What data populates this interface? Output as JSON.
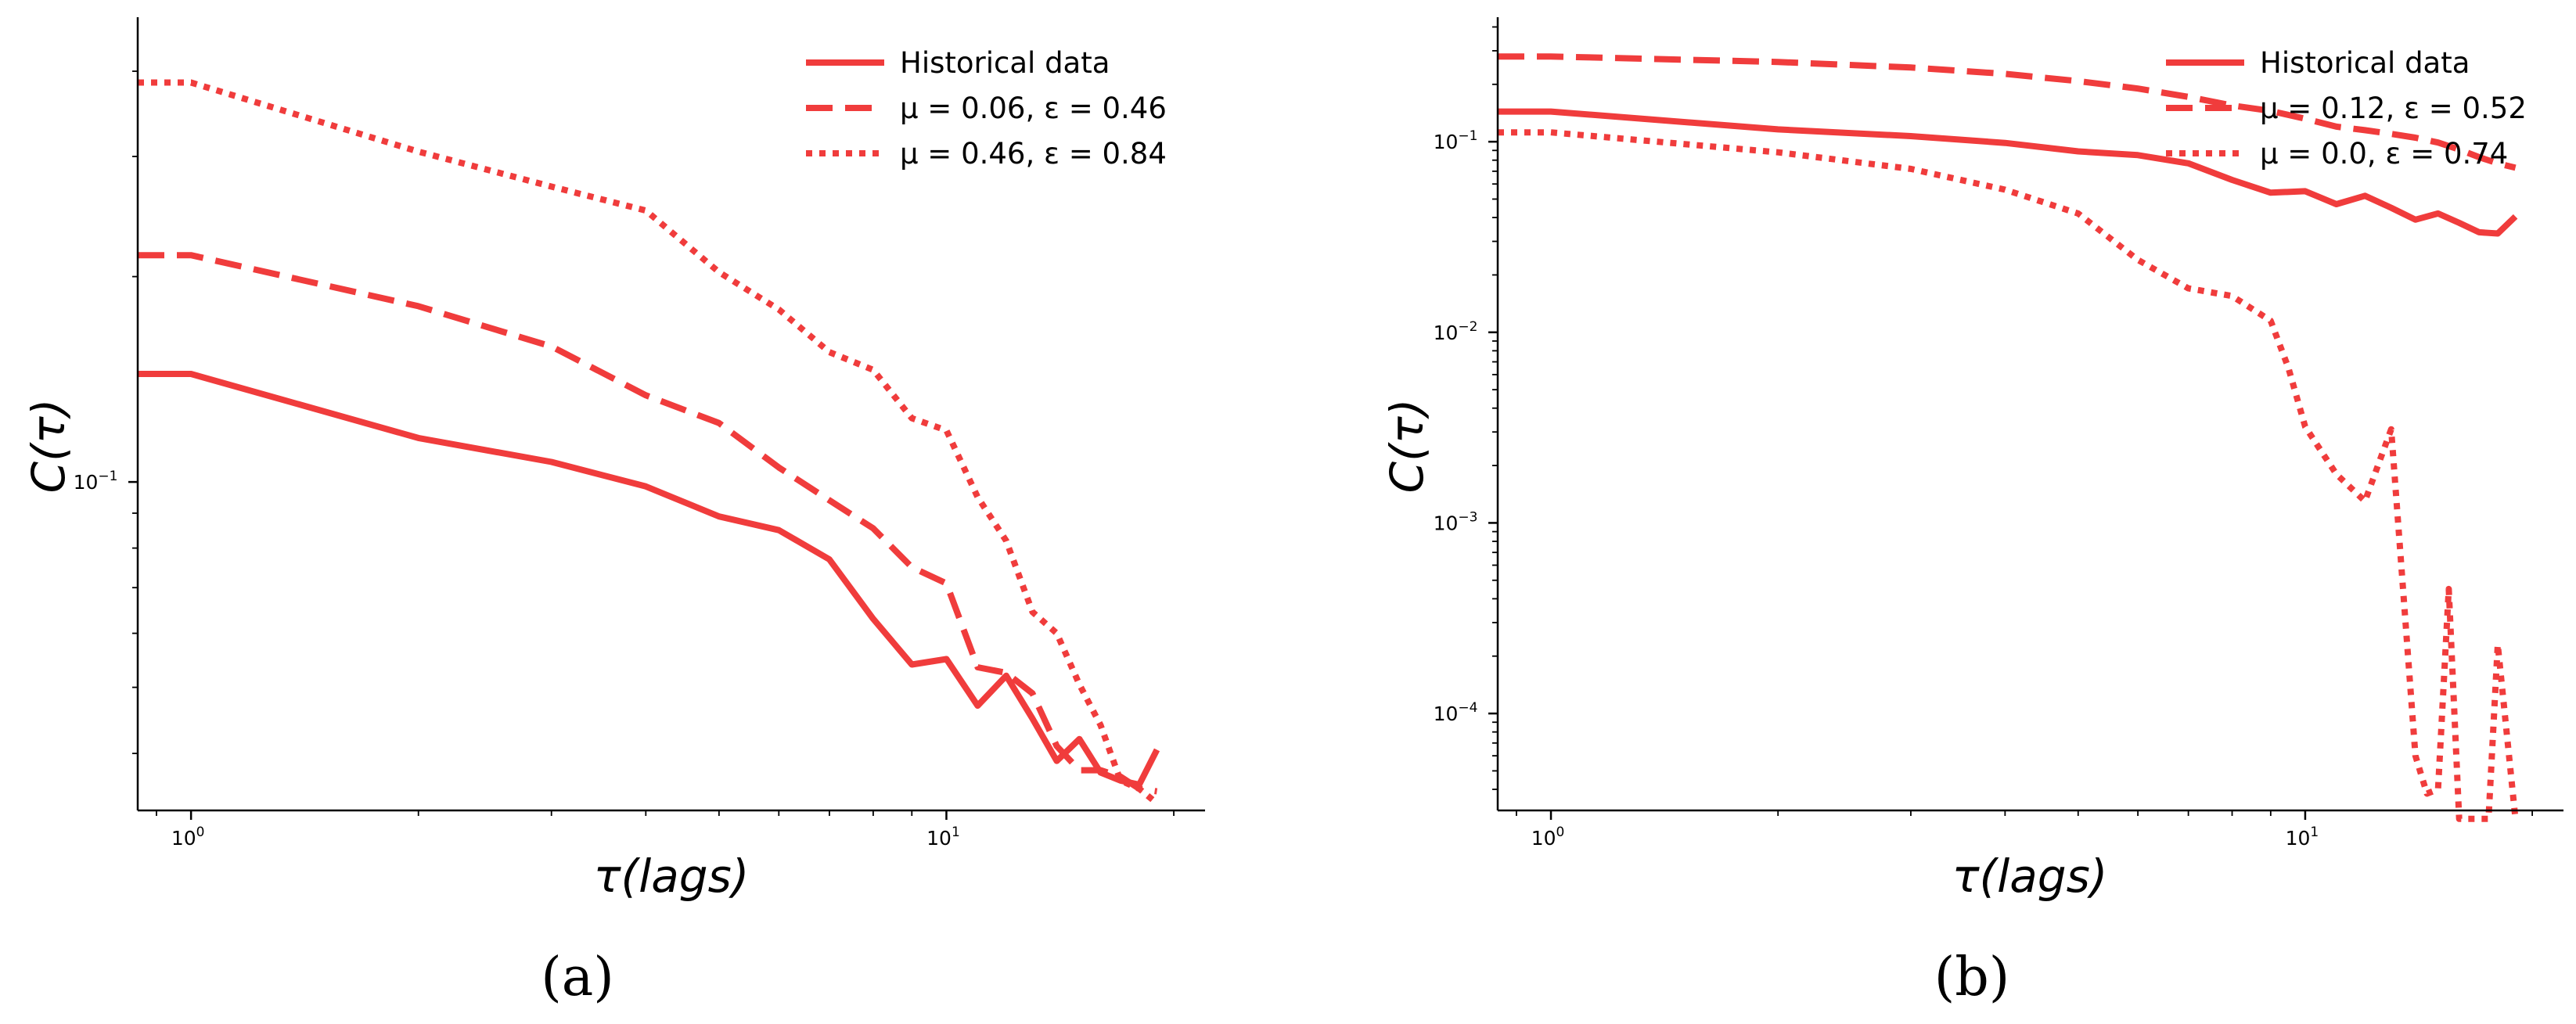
{
  "line_color": "#f03c3c",
  "chart_data": [
    {
      "type": "line",
      "panel_label": "(a)",
      "xscale": "log",
      "yscale": "log",
      "xlabel": "τ(lags)",
      "ylabel": "C(τ)",
      "xlim": [
        0.85,
        22
      ],
      "ylim": [
        0.033,
        0.48
      ],
      "xticks": [
        {
          "value": 1,
          "base": "10",
          "exp": "0"
        },
        {
          "value": 10,
          "base": "10",
          "exp": "1"
        }
      ],
      "yticks": [
        {
          "value": 0.1,
          "base": "10",
          "exp": "−1"
        }
      ],
      "legend_position": "top-right",
      "legend_labels": [
        "Historical data",
        "μ = 0.06, ε = 0.46",
        "μ = 0.46, ε = 0.84"
      ],
      "series": [
        {
          "name": "Historical data",
          "style": "solid",
          "x": [
            0.85,
            1,
            2,
            3,
            4,
            5,
            6,
            7,
            8,
            9,
            10,
            11,
            12,
            13,
            14,
            15,
            16,
            17,
            18,
            19
          ],
          "y": [
            0.144,
            0.144,
            0.116,
            0.107,
            0.0985,
            0.089,
            0.085,
            0.077,
            0.063,
            0.054,
            0.055,
            0.047,
            0.052,
            0.045,
            0.039,
            0.042,
            0.0375,
            0.0365,
            0.036,
            0.0405
          ]
        },
        {
          "name": "μ = 0.06, ε = 0.46",
          "style": "dashed",
          "x": [
            0.85,
            1,
            2,
            3,
            4,
            5,
            6,
            7,
            8,
            9,
            10,
            11,
            12,
            13,
            14,
            15,
            16,
            17,
            18,
            19
          ],
          "y": [
            0.215,
            0.215,
            0.181,
            0.158,
            0.134,
            0.122,
            0.105,
            0.094,
            0.0855,
            0.075,
            0.071,
            0.0535,
            0.0525,
            0.049,
            0.041,
            0.0378,
            0.0378,
            0.037,
            0.0355,
            0.0352
          ]
        },
        {
          "name": "μ = 0.46, ε = 0.84",
          "style": "dotted",
          "x": [
            0.85,
            1,
            2,
            3,
            4,
            5,
            6,
            7,
            8,
            9,
            10,
            11,
            12,
            13,
            14,
            15,
            16,
            17,
            18,
            19
          ],
          "y": [
            0.385,
            0.385,
            0.305,
            0.271,
            0.25,
            0.203,
            0.179,
            0.155,
            0.146,
            0.124,
            0.119,
            0.095,
            0.082,
            0.0645,
            0.06,
            0.0505,
            0.044,
            0.0365,
            0.0355,
            0.0338
          ]
        }
      ]
    },
    {
      "type": "line",
      "panel_label": "(b)",
      "xscale": "log",
      "yscale": "log",
      "xlabel": "τ(lags)",
      "ylabel": "C(τ)",
      "xlim": [
        0.85,
        22
      ],
      "ylim": [
        3.1e-05,
        0.45
      ],
      "xticks": [
        {
          "value": 1,
          "base": "10",
          "exp": "0"
        },
        {
          "value": 10,
          "base": "10",
          "exp": "1"
        }
      ],
      "yticks": [
        {
          "value": 0.1,
          "base": "10",
          "exp": "−1"
        },
        {
          "value": 0.01,
          "base": "10",
          "exp": "−2"
        },
        {
          "value": 0.001,
          "base": "10",
          "exp": "−3"
        },
        {
          "value": 0.0001,
          "base": "10",
          "exp": "−4"
        }
      ],
      "legend_position": "top-right",
      "legend_labels": [
        "Historical data",
        "μ = 0.12, ε = 0.52",
        "μ = 0.0, ε = 0.74"
      ],
      "series": [
        {
          "name": "Historical data",
          "style": "solid",
          "x": [
            0.85,
            1,
            2,
            3,
            4,
            5,
            6,
            7,
            8,
            9,
            10,
            11,
            12,
            13,
            14,
            15,
            16,
            17,
            18,
            19
          ],
          "y": [
            0.144,
            0.144,
            0.116,
            0.107,
            0.0985,
            0.089,
            0.085,
            0.077,
            0.063,
            0.054,
            0.055,
            0.047,
            0.052,
            0.045,
            0.039,
            0.042,
            0.0375,
            0.0335,
            0.033,
            0.0405
          ]
        },
        {
          "name": "μ = 0.12, ε = 0.52",
          "style": "dashed",
          "x": [
            0.85,
            1,
            2,
            3,
            4,
            5,
            6,
            7,
            8,
            9,
            10,
            11,
            12,
            13,
            14,
            15,
            16,
            17,
            18,
            19
          ],
          "y": [
            0.28,
            0.28,
            0.262,
            0.245,
            0.227,
            0.208,
            0.19,
            0.172,
            0.155,
            0.145,
            0.132,
            0.12,
            0.115,
            0.11,
            0.105,
            0.099,
            0.091,
            0.083,
            0.077,
            0.073
          ]
        },
        {
          "name": "μ = 0.0, ε = 0.74",
          "style": "dotted",
          "x": [
            0.85,
            1,
            2,
            3,
            4,
            5,
            6,
            7,
            8,
            9,
            9.5,
            10,
            11,
            12,
            13,
            14,
            14.5,
            15,
            15.5,
            16,
            17,
            17.5,
            18,
            19
          ],
          "y": [
            0.112,
            0.112,
            0.088,
            0.072,
            0.056,
            0.042,
            0.024,
            0.017,
            0.0155,
            0.0115,
            0.0065,
            0.0032,
            0.0018,
            0.0013,
            0.0031,
            6e-05,
            3.8e-05,
            4e-05,
            0.00045,
            2.8e-05,
            2.8e-05,
            2.8e-05,
            0.00023,
            2.8e-05
          ]
        }
      ]
    }
  ]
}
